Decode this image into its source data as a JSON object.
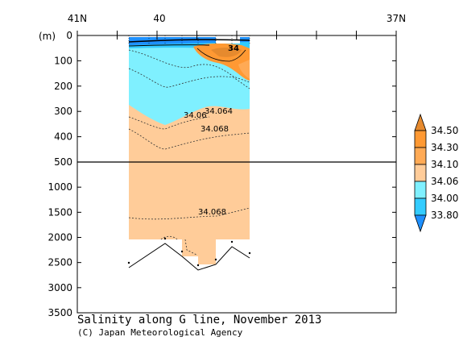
{
  "title": "Salinity along G line, November 2013",
  "credit": "(C) Japan Meteorological Agency",
  "y_unit": "(m)",
  "colors": {
    "c_lt_33_80": "#1e90ff",
    "c_33_80_34_00": "#33ccff",
    "c_34_00_34_06": "#7ff0ff",
    "c_34_06_34_10": "#ffcc99",
    "c_34_10_34_30": "#ffaa55",
    "c_34_30_34_50": "#ff9933",
    "c_gt_34_50": "#e68a2e"
  },
  "chart_data": {
    "type": "heatmap",
    "title": "Salinity along G line, November 2013",
    "x_axis": {
      "ticks": [
        "41N",
        "40",
        "37N"
      ],
      "range_lat": [
        41,
        37
      ]
    },
    "y_axis": {
      "label": "(m)",
      "upper_ticks": [
        0,
        100,
        200,
        300,
        400,
        500
      ],
      "lower_ticks": [
        500,
        1000,
        1500,
        2000,
        2500,
        3000,
        3500
      ],
      "upper_range": [
        0,
        500
      ],
      "lower_range": [
        500,
        3500
      ]
    },
    "colorbar": {
      "levels": [
        "33.80",
        "34.00",
        "34.06",
        "34.10",
        "34.30",
        "34.50"
      ]
    },
    "contour_labels": [
      "34.06",
      "34.064",
      "34.068",
      "34.068",
      "34"
    ]
  }
}
